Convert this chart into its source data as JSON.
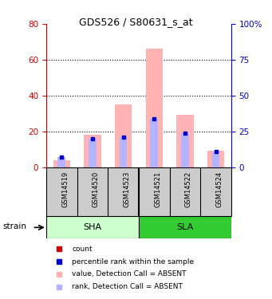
{
  "title": "GDS526 / S80631_s_at",
  "samples": [
    "GSM14519",
    "GSM14520",
    "GSM14523",
    "GSM14521",
    "GSM14522",
    "GSM14524"
  ],
  "values_absent": [
    4,
    18,
    35,
    66,
    29,
    9
  ],
  "rank_absent": [
    7,
    20,
    21,
    34,
    24,
    11
  ],
  "left_ylim": [
    0,
    80
  ],
  "right_ylim": [
    0,
    100
  ],
  "left_yticks": [
    0,
    20,
    40,
    60,
    80
  ],
  "right_yticks": [
    0,
    25,
    50,
    75,
    100
  ],
  "right_yticklabels": [
    "0",
    "25",
    "50",
    "75",
    "100%"
  ],
  "left_ycolor": "#cc0000",
  "right_ycolor": "#0000cc",
  "absent_bar_color": "#ffb3b3",
  "absent_rank_color": "#b3b3ff",
  "count_color": "#cc0000",
  "rank_color": "#0000cc",
  "bg_color": "#ffffff",
  "sha_bg": "#ccffcc",
  "sla_bg": "#33cc33",
  "sample_bg": "#cccccc",
  "grid_dotted_vals": [
    20,
    40,
    60
  ]
}
